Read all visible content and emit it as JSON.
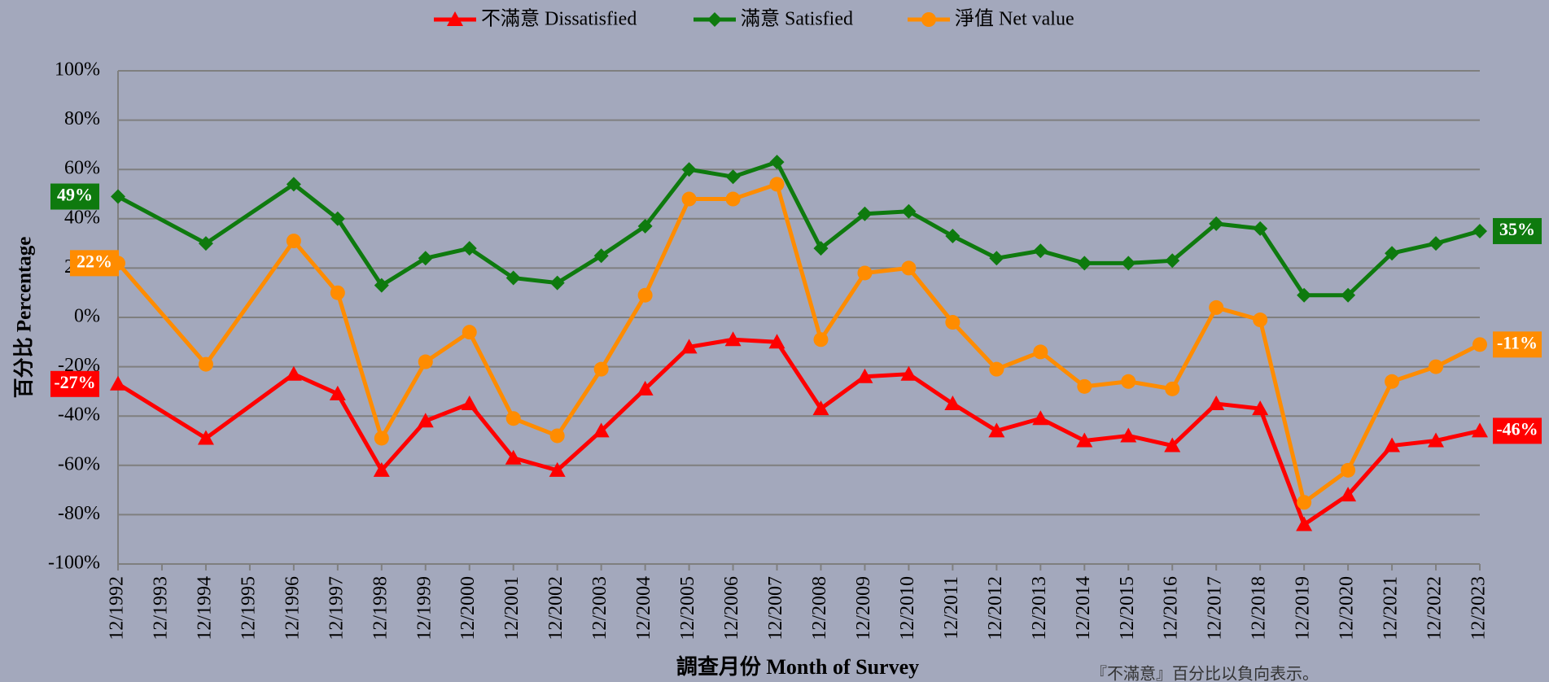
{
  "chart_data": {
    "type": "line",
    "y_axis_label": "百分比 Percentage",
    "x_axis_label": "調查月份 Month of Survey",
    "note": "『不滿意』百分比以負向表示。",
    "categories": [
      "12/1992",
      "12/1993",
      "12/1994",
      "12/1995",
      "12/1996",
      "12/1997",
      "12/1998",
      "12/1999",
      "12/2000",
      "12/2001",
      "12/2002",
      "12/2003",
      "12/2004",
      "12/2005",
      "12/2006",
      "12/2007",
      "12/2008",
      "12/2009",
      "12/2010",
      "12/2011",
      "12/2012",
      "12/2013",
      "12/2014",
      "12/2015",
      "12/2016",
      "12/2017",
      "12/2018",
      "12/2019",
      "12/2020",
      "12/2021",
      "12/2022",
      "12/2023"
    ],
    "series": [
      {
        "name": "不滿意 Dissatisfied",
        "color": "#ff0000",
        "marker": "triangle",
        "values": [
          -27,
          null,
          -49,
          null,
          -23,
          -31,
          -62,
          -42,
          -35,
          -57,
          -62,
          -46,
          -29,
          -12,
          -9,
          -10,
          -37,
          -24,
          -23,
          -35,
          -46,
          -41,
          -50,
          -48,
          -52,
          -35,
          -37,
          -84,
          -72,
          -52,
          -50,
          -46
        ],
        "value_labels": [
          "-27%",
          null,
          null,
          null,
          null,
          null,
          null,
          null,
          null,
          null,
          null,
          null,
          null,
          null,
          null,
          null,
          null,
          null,
          null,
          null,
          null,
          null,
          null,
          null,
          null,
          null,
          null,
          null,
          null,
          null,
          null,
          "-46%"
        ]
      },
      {
        "name": "滿意 Satisfied",
        "color": "#0e7a0e",
        "marker": "diamond",
        "values": [
          49,
          null,
          30,
          null,
          54,
          40,
          13,
          24,
          28,
          16,
          14,
          25,
          37,
          60,
          57,
          63,
          28,
          42,
          43,
          33,
          24,
          27,
          22,
          22,
          23,
          38,
          36,
          9,
          9,
          26,
          30,
          35
        ],
        "value_labels": [
          "49%",
          null,
          null,
          null,
          null,
          null,
          null,
          null,
          null,
          null,
          null,
          null,
          null,
          null,
          null,
          null,
          null,
          null,
          null,
          null,
          null,
          null,
          null,
          null,
          null,
          null,
          null,
          null,
          null,
          null,
          null,
          "35%"
        ]
      },
      {
        "name": "淨值 Net value",
        "color": "#ff8c00",
        "marker": "circle",
        "values": [
          22,
          null,
          -19,
          null,
          31,
          10,
          -49,
          -18,
          -6,
          -41,
          -48,
          -21,
          9,
          48,
          48,
          54,
          -9,
          18,
          20,
          -2,
          -21,
          -14,
          -28,
          -26,
          -29,
          4,
          -1,
          -75,
          -62,
          -26,
          -20,
          -11
        ],
        "value_labels": [
          "22%",
          null,
          null,
          null,
          null,
          null,
          null,
          null,
          null,
          null,
          null,
          null,
          null,
          null,
          null,
          null,
          null,
          null,
          null,
          null,
          null,
          null,
          null,
          null,
          null,
          null,
          null,
          null,
          null,
          null,
          null,
          "-11%"
        ]
      }
    ],
    "ylim": [
      -100,
      100
    ],
    "yticks": [
      {
        "value": -100,
        "label": "-100%"
      },
      {
        "value": -80,
        "label": "-80%"
      },
      {
        "value": -60,
        "label": "-60%"
      },
      {
        "value": -40,
        "label": "-40%"
      },
      {
        "value": -20,
        "label": "-20%"
      },
      {
        "value": 0,
        "label": "0%"
      },
      {
        "value": 20,
        "label": "20%"
      },
      {
        "value": 40,
        "label": "40%"
      },
      {
        "value": 60,
        "label": "60%"
      },
      {
        "value": 80,
        "label": "80%"
      },
      {
        "value": 100,
        "label": "100%"
      }
    ],
    "grid": true,
    "legend": "top"
  }
}
